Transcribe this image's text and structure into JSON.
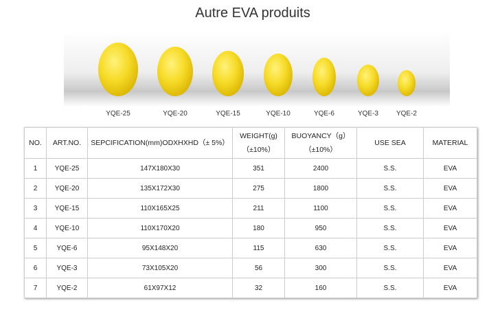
{
  "header": {
    "title": "Autre EVA produits"
  },
  "image": {
    "labels": [
      "YQE-25",
      "YQE-20",
      "YQE-15",
      "YQE-10",
      "YQE-6",
      "YQE-3",
      "YQE-2"
    ]
  },
  "table": {
    "columns": [
      "NO.",
      "ART.NO.",
      "SEPCIFICATION(mm)ODXHXHD（± 5%）",
      "WEIGHT(g)（±10%）",
      "BUOYANCY（g）（±10%）",
      "USE SEA",
      "MATERIAL"
    ],
    "rows": [
      [
        "1",
        "YQE-25",
        "147X180X30",
        "351",
        "2400",
        "S.S.",
        "EVA"
      ],
      [
        "2",
        "YQE-20",
        "135X172X30",
        "275",
        "1800",
        "S.S.",
        "EVA"
      ],
      [
        "3",
        "YQE-15",
        "110X165X25",
        "211",
        "1100",
        "S.S.",
        "EVA"
      ],
      [
        "4",
        "YQE-10",
        "110X170X20",
        "180",
        "950",
        "S.S.",
        "EVA"
      ],
      [
        "5",
        "YQE-6",
        "95X148X20",
        "115",
        "630",
        "S.S.",
        "EVA"
      ],
      [
        "6",
        "YQE-3",
        "73X105X20",
        "56",
        "300",
        "S.S.",
        "EVA"
      ],
      [
        "7",
        "YQE-2",
        "61X97X12",
        "32",
        "160",
        "S.S.",
        "EVA"
      ]
    ]
  }
}
